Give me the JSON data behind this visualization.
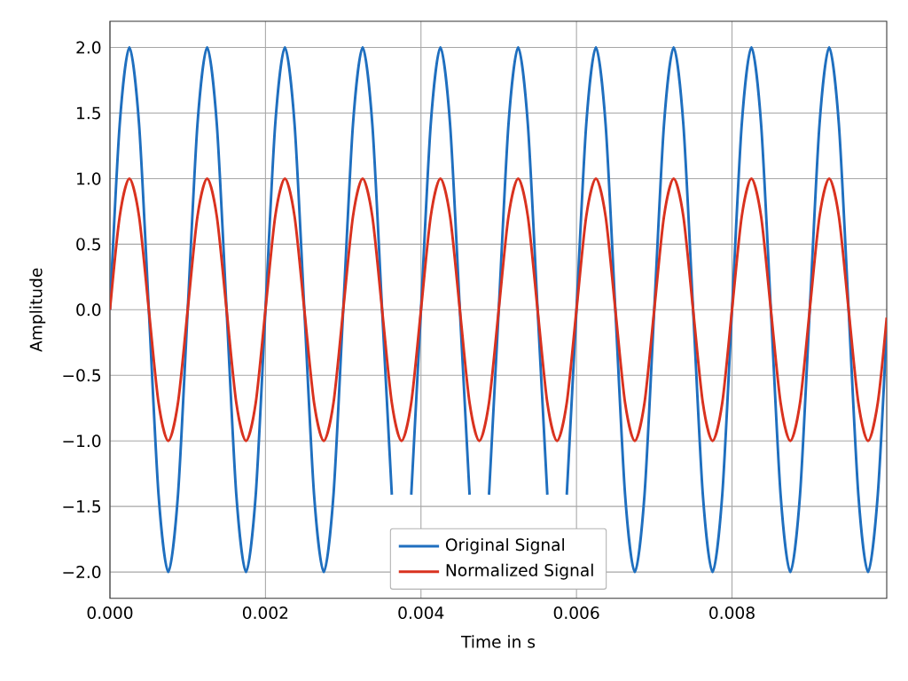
{
  "chart_data": {
    "type": "line",
    "xlabel": "Time in s",
    "ylabel": "Amplitude",
    "x": [
      0,
      0.000125,
      0.00025,
      0.000375,
      0.0005,
      0.000625,
      0.00075,
      0.000875,
      0.001,
      0.001125,
      0.00125,
      0.001375,
      0.0015,
      0.001625,
      0.00175,
      0.001875,
      0.002,
      0.002125,
      0.00225,
      0.002375,
      0.0025,
      0.002625,
      0.00275,
      0.002875,
      0.003,
      0.003125,
      0.00325,
      0.003375,
      0.0035,
      0.003625,
      0.00375,
      0.003875,
      0.004,
      0.004125,
      0.00425,
      0.004375,
      0.0045,
      0.004625,
      0.00475,
      0.004875,
      0.005,
      0.005125,
      0.00525,
      0.005375,
      0.0055,
      0.005625,
      0.00575,
      0.005875,
      0.006,
      0.006125,
      0.00625,
      0.006375,
      0.0065,
      0.006625,
      0.00675,
      0.006875,
      0.007,
      0.007125,
      0.00725,
      0.007375,
      0.0075,
      0.007625,
      0.00775,
      0.007875,
      0.008,
      0.008125,
      0.00825,
      0.008375,
      0.0085,
      0.008625,
      0.00875,
      0.008875,
      0.009,
      0.009125,
      0.00925,
      0.009375,
      0.0095,
      0.009625,
      0.00975,
      0.009875,
      0.00999
    ],
    "series": [
      {
        "name": "Original Signal",
        "color": "#1f6fbf",
        "values": [
          0,
          1.41,
          2,
          1.41,
          0,
          -1.41,
          -2,
          -1.41,
          0,
          1.41,
          2,
          1.41,
          0,
          -1.41,
          -2,
          -1.41,
          0,
          1.41,
          2,
          1.41,
          0,
          -1.41,
          -2,
          -1.41,
          0,
          1.41,
          2,
          1.41,
          0,
          -1.41,
          null,
          -1.41,
          0,
          1.41,
          2,
          1.41,
          0,
          -1.41,
          null,
          -1.41,
          0,
          1.41,
          2,
          1.41,
          0,
          -1.41,
          null,
          -1.41,
          0,
          1.41,
          2,
          1.41,
          0,
          -1.41,
          -2,
          -1.41,
          0,
          1.41,
          2,
          1.41,
          0,
          -1.41,
          -2,
          -1.41,
          0,
          1.41,
          2,
          1.41,
          0,
          -1.41,
          -2,
          -1.41,
          0,
          1.41,
          2,
          1.41,
          0,
          -1.41,
          -2,
          -1.41,
          -0.13
        ]
      },
      {
        "name": "Normalized Signal",
        "color": "#d9321f",
        "values": [
          0,
          0.71,
          1,
          0.71,
          0,
          -0.71,
          -1,
          -0.71,
          0,
          0.71,
          1,
          0.71,
          0,
          -0.71,
          -1,
          -0.71,
          0,
          0.71,
          1,
          0.71,
          0,
          -0.71,
          -1,
          -0.71,
          0,
          0.71,
          1,
          0.71,
          0,
          -0.71,
          -1,
          -0.71,
          0,
          0.71,
          1,
          0.71,
          0,
          -0.71,
          -1,
          -0.71,
          0,
          0.71,
          1,
          0.71,
          0,
          -0.71,
          -1,
          -0.71,
          0,
          0.71,
          1,
          0.71,
          0,
          -0.71,
          -1,
          -0.71,
          0,
          0.71,
          1,
          0.71,
          0,
          -0.71,
          -1,
          -0.71,
          0,
          0.71,
          1,
          0.71,
          0,
          -0.71,
          -1,
          -0.71,
          0,
          0.71,
          1,
          0.71,
          0,
          -0.71,
          -1,
          -0.71,
          -0.06
        ]
      }
    ],
    "xlim": [
      0,
      0.00999
    ],
    "ylim": [
      -2.2,
      2.2
    ],
    "xticks": [
      {
        "value": 0,
        "label": "0.000"
      },
      {
        "value": 0.002,
        "label": "0.002"
      },
      {
        "value": 0.004,
        "label": "0.004"
      },
      {
        "value": 0.006,
        "label": "0.006"
      },
      {
        "value": 0.008,
        "label": "0.008"
      }
    ],
    "yticks": [
      {
        "value": -2,
        "label": "−2.0"
      },
      {
        "value": -1.5,
        "label": "−1.5"
      },
      {
        "value": -1,
        "label": "−1.0"
      },
      {
        "value": -0.5,
        "label": "−0.5"
      },
      {
        "value": 0,
        "label": "0.0"
      },
      {
        "value": 0.5,
        "label": "0.5"
      },
      {
        "value": 1,
        "label": "1.0"
      },
      {
        "value": 1.5,
        "label": "1.5"
      },
      {
        "value": 2,
        "label": "2.0"
      }
    ],
    "grid": true,
    "legend": "bottom",
    "marker": "none",
    "line_style": "solid"
  }
}
